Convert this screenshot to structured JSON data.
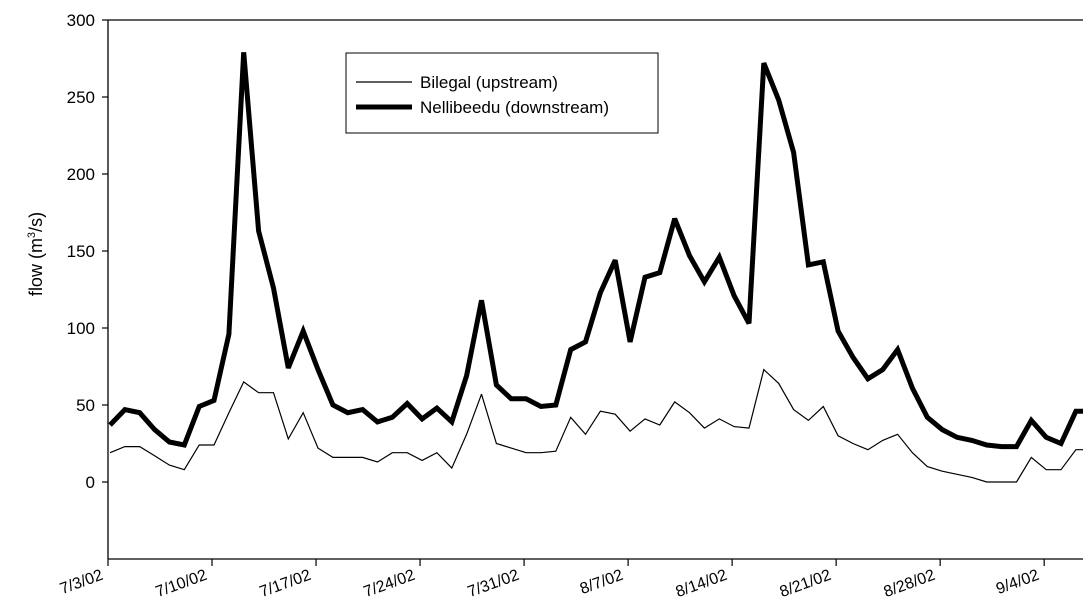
{
  "chart_data": {
    "type": "line",
    "ylabel_main": "flow (m",
    "ylabel_sup": "3",
    "ylabel_tail": "/s)",
    "ylim": [
      -50,
      300
    ],
    "y_ticks": [
      0,
      50,
      100,
      150,
      200,
      250,
      300
    ],
    "x_tick_labels": [
      "7/3/02",
      "7/10/02",
      "7/17/02",
      "7/24/02",
      "7/31/02",
      "8/7/02",
      "8/14/02",
      "8/21/02",
      "8/28/02",
      "9/4/02"
    ],
    "x_start": "7/3/02",
    "legend_position": "top-center",
    "series": [
      {
        "name": "Bilegal (upstream)",
        "style": "thin",
        "values": [
          19,
          23,
          23,
          17,
          11,
          8,
          24,
          24,
          45,
          65,
          58,
          58,
          28,
          45,
          22,
          16,
          16,
          16,
          13,
          19,
          19,
          14,
          19,
          9,
          31,
          57,
          25,
          22,
          19,
          19,
          20,
          42,
          31,
          46,
          44,
          33,
          41,
          37,
          52,
          45,
          35,
          41,
          36,
          35,
          73,
          64,
          47,
          40,
          49,
          30,
          25,
          21,
          27,
          31,
          19,
          10,
          7,
          5,
          3,
          0,
          0,
          0,
          16,
          8,
          8,
          21,
          21
        ]
      },
      {
        "name": "Nellibeedu (downstream)",
        "style": "thick",
        "values": [
          37,
          47,
          45,
          34,
          26,
          24,
          49,
          53,
          96,
          279,
          163,
          126,
          74,
          98,
          73,
          50,
          45,
          47,
          39,
          42,
          51,
          41,
          48,
          39,
          69,
          118,
          63,
          54,
          54,
          49,
          50,
          86,
          91,
          123,
          144,
          91,
          133,
          136,
          171,
          147,
          130,
          146,
          121,
          103,
          272,
          248,
          214,
          141,
          143,
          98,
          81,
          67,
          73,
          86,
          61,
          42,
          34,
          29,
          27,
          24,
          23,
          23,
          40,
          29,
          25,
          46,
          46
        ]
      }
    ]
  }
}
